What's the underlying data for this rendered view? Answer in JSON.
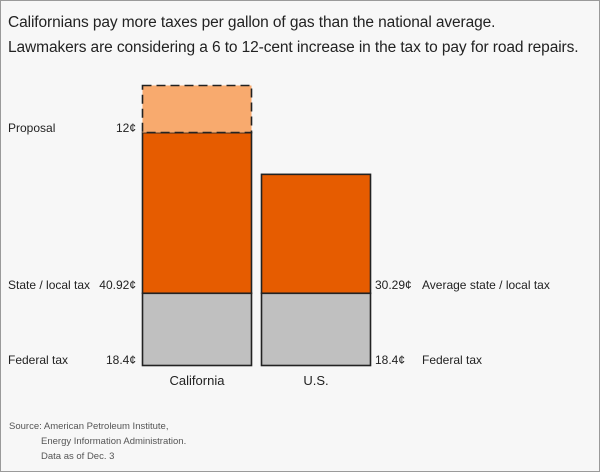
{
  "title_line1": "Californians pay more taxes per gallon of gas than the national average.",
  "title_line2": "Lawmakers are considering a 6 to 12-cent increase in the tax to pay for road repairs.",
  "colors": {
    "federal": "#c0c0c0",
    "state_local": "#e65c00",
    "proposal": "#f8aa6e",
    "outline": "#222222"
  },
  "chart_data": {
    "type": "bar",
    "stacked": true,
    "categories": [
      "California",
      "U.S."
    ],
    "series": [
      {
        "name": "Federal tax",
        "values": [
          18.4,
          18.4
        ]
      },
      {
        "name": "State / local tax",
        "values": [
          40.92,
          30.29
        ]
      },
      {
        "name": "Proposal",
        "values": [
          12,
          0
        ]
      }
    ],
    "ylim": [
      0,
      71.32
    ],
    "labels": {
      "california": {
        "proposal_name": "Proposal",
        "proposal_value": "12¢",
        "state_name": "State / local tax",
        "state_value": "40.92¢",
        "federal_name": "Federal tax",
        "federal_value": "18.4¢"
      },
      "us": {
        "state_value": "30.29¢",
        "state_name": "Average state / local tax",
        "federal_value": "18.4¢",
        "federal_name": "Federal tax"
      }
    }
  },
  "source": {
    "line1": "Source: American Petroleum Institute,",
    "line2": "Energy Information Administration.",
    "line3": "Data as of Dec. 3"
  }
}
